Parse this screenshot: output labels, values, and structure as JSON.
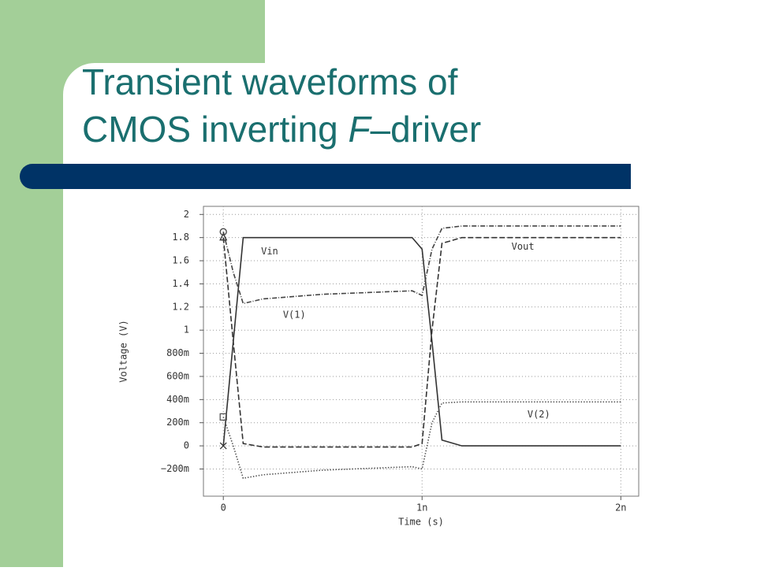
{
  "chart_data": {
    "type": "line",
    "title": [
      "Transient waveforms of",
      "CMOS inverting ",
      "F",
      "–driver"
    ],
    "x_label": "Time (s)",
    "y_label": "Voltage (V)",
    "x": [
      0,
      5e-11,
      1e-10,
      2e-10,
      5e-10,
      9.5e-10,
      1e-09,
      1.05e-09,
      1.1e-09,
      1.2e-09,
      1.5e-09,
      2e-09
    ],
    "series": [
      {
        "name": "Vin",
        "color": "#333333",
        "line_style": "solid",
        "marker": "cross",
        "values": [
          0,
          0.9,
          1.8,
          1.8,
          1.8,
          1.8,
          1.7,
          0.9,
          0.05,
          0,
          0,
          0
        ]
      },
      {
        "name": "Vout",
        "color": "#333333",
        "line_style": "dashed",
        "marker": "triangle",
        "values": [
          1.8,
          0.9,
          0.02,
          -0.01,
          -0.01,
          -0.01,
          0.02,
          1.0,
          1.75,
          1.8,
          1.8,
          1.8
        ]
      },
      {
        "name": "V(1)",
        "color": "#444444",
        "line_style": "dashdot",
        "marker": "circle",
        "values": [
          1.85,
          1.5,
          1.23,
          1.27,
          1.31,
          1.34,
          1.3,
          1.7,
          1.88,
          1.9,
          1.9,
          1.9
        ]
      },
      {
        "name": "V(2)",
        "color": "#555555",
        "line_style": "dotted",
        "marker": "square",
        "values": [
          0.25,
          0.0,
          -0.28,
          -0.25,
          -0.21,
          -0.18,
          -0.2,
          0.2,
          0.37,
          0.38,
          0.38,
          0.38
        ]
      }
    ],
    "xlim": [
      -1e-10,
      2.09e-09
    ],
    "xticks": [
      0,
      {
        "value": 1e-09,
        "label": "1n"
      },
      {
        "value": 2e-09,
        "label": "2n"
      }
    ],
    "ylim": [
      -0.435,
      2.07
    ],
    "yticks": [
      {
        "value": -0.2,
        "label": "−200m"
      },
      0,
      {
        "value": 0.2,
        "label": "200m"
      },
      {
        "value": 0.4,
        "label": "400m"
      },
      {
        "value": 0.6,
        "label": "600m"
      },
      {
        "value": 0.8,
        "label": "800m"
      },
      1,
      1.2,
      1.4,
      1.6,
      1.8,
      2
    ],
    "grid": true
  }
}
